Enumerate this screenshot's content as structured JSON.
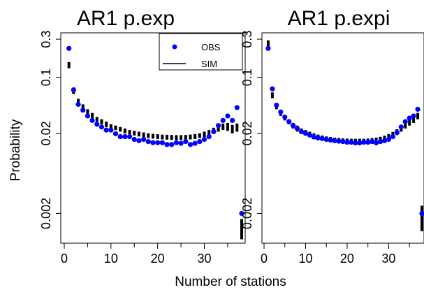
{
  "chart_data": [
    {
      "type": "scatter",
      "title": "AR1 p.exp",
      "xlabel": "Number of stations",
      "ylabel": "Probability",
      "yscale": "log",
      "xlim": [
        0,
        38
      ],
      "ylim": [
        0.00085,
        0.36
      ],
      "x_ticks": [
        0,
        10,
        20,
        30
      ],
      "y_ticks": [
        0.002,
        0.02,
        0.1,
        0.3
      ],
      "y_tick_labels": [
        "0.002",
        "0.02",
        "0.1",
        "0.3"
      ],
      "legend": {
        "position": "top-right",
        "entries": [
          {
            "label": "OBS",
            "symbol": "point",
            "color": "#0000ff"
          },
          {
            "label": "SIM",
            "symbol": "line",
            "color": "#000000"
          }
        ]
      },
      "series": [
        {
          "name": "OBS",
          "color": "#0000ff",
          "x": [
            1,
            2,
            3,
            4,
            5,
            6,
            7,
            8,
            9,
            10,
            11,
            12,
            13,
            14,
            15,
            16,
            17,
            18,
            19,
            20,
            21,
            22,
            23,
            24,
            25,
            26,
            27,
            28,
            29,
            30,
            31,
            32,
            33,
            34,
            35,
            36,
            37,
            38
          ],
          "y": [
            0.23,
            0.07,
            0.046,
            0.039,
            0.033,
            0.029,
            0.026,
            0.024,
            0.022,
            0.022,
            0.0198,
            0.0182,
            0.0182,
            0.0182,
            0.0168,
            0.0162,
            0.0168,
            0.0158,
            0.0153,
            0.0153,
            0.0153,
            0.0145,
            0.0145,
            0.0153,
            0.015,
            0.0158,
            0.0145,
            0.015,
            0.0158,
            0.0168,
            0.0182,
            0.021,
            0.025,
            0.029,
            0.033,
            0.029,
            0.042,
            0.002
          ]
        },
        {
          "name": "SIM",
          "color": "#000000",
          "x": [
            1,
            2,
            3,
            4,
            5,
            6,
            7,
            8,
            9,
            10,
            11,
            12,
            13,
            14,
            15,
            16,
            17,
            18,
            19,
            20,
            21,
            22,
            23,
            24,
            25,
            26,
            27,
            28,
            29,
            30,
            31,
            32,
            33,
            34,
            35,
            36,
            37,
            38
          ],
          "low": [
            0.13,
            0.062,
            0.047,
            0.04,
            0.035,
            0.031,
            0.028,
            0.026,
            0.024,
            0.023,
            0.022,
            0.021,
            0.02,
            0.0195,
            0.0188,
            0.0183,
            0.0178,
            0.0175,
            0.0172,
            0.017,
            0.0168,
            0.0167,
            0.0166,
            0.0165,
            0.0165,
            0.0166,
            0.0168,
            0.017,
            0.0175,
            0.018,
            0.019,
            0.02,
            0.021,
            0.022,
            0.0215,
            0.02,
            0.021,
            0.00095
          ],
          "high": [
            0.155,
            0.072,
            0.054,
            0.046,
            0.04,
            0.036,
            0.032,
            0.03,
            0.028,
            0.026,
            0.025,
            0.024,
            0.023,
            0.022,
            0.0215,
            0.021,
            0.0205,
            0.02,
            0.0197,
            0.0195,
            0.0193,
            0.0192,
            0.0191,
            0.019,
            0.019,
            0.0191,
            0.0193,
            0.0196,
            0.02,
            0.021,
            0.022,
            0.0235,
            0.025,
            0.0265,
            0.027,
            0.0255,
            0.0265,
            0.0017
          ]
        }
      ]
    },
    {
      "type": "scatter",
      "title": "AR1 p.expi",
      "xlabel": "",
      "ylabel": "",
      "yscale": "log",
      "xlim": [
        0,
        38
      ],
      "ylim": [
        0.00085,
        0.36
      ],
      "x_ticks": [
        0,
        10,
        20,
        30
      ],
      "y_ticks": [
        0.002,
        0.02,
        0.1,
        0.3
      ],
      "y_tick_labels": [
        "0.002",
        "0.02",
        "0.1",
        "0.3"
      ],
      "series": [
        {
          "name": "OBS",
          "color": "#0000ff",
          "x": [
            1,
            2,
            3,
            4,
            5,
            6,
            7,
            8,
            9,
            10,
            11,
            12,
            13,
            14,
            15,
            16,
            17,
            18,
            19,
            20,
            21,
            22,
            23,
            24,
            25,
            26,
            27,
            28,
            29,
            30,
            31,
            32,
            33,
            34,
            35,
            36,
            37,
            38
          ],
          "y": [
            0.23,
            0.072,
            0.045,
            0.037,
            0.032,
            0.028,
            0.025,
            0.023,
            0.021,
            0.02,
            0.019,
            0.018,
            0.0175,
            0.0172,
            0.0168,
            0.0165,
            0.0162,
            0.016,
            0.0158,
            0.0155,
            0.0155,
            0.0152,
            0.0152,
            0.0155,
            0.0155,
            0.0158,
            0.0152,
            0.0158,
            0.0162,
            0.0168,
            0.0182,
            0.0205,
            0.024,
            0.028,
            0.031,
            0.033,
            0.04,
            0.002
          ]
        },
        {
          "name": "SIM",
          "color": "#000000",
          "x": [
            1,
            2,
            3,
            4,
            5,
            6,
            7,
            8,
            9,
            10,
            11,
            12,
            13,
            14,
            15,
            16,
            17,
            18,
            19,
            20,
            21,
            22,
            23,
            24,
            25,
            26,
            27,
            28,
            29,
            30,
            31,
            32,
            33,
            34,
            35,
            36,
            37,
            38
          ],
          "low": [
            0.24,
            0.055,
            0.04,
            0.033,
            0.029,
            0.026,
            0.023,
            0.021,
            0.02,
            0.019,
            0.018,
            0.0172,
            0.0166,
            0.0162,
            0.0158,
            0.0155,
            0.0152,
            0.015,
            0.0148,
            0.0147,
            0.0146,
            0.0146,
            0.0146,
            0.0146,
            0.0147,
            0.0148,
            0.015,
            0.0153,
            0.0158,
            0.0165,
            0.0175,
            0.019,
            0.021,
            0.023,
            0.025,
            0.027,
            0.03,
            0.0012
          ],
          "high": [
            0.29,
            0.065,
            0.046,
            0.038,
            0.033,
            0.03,
            0.027,
            0.025,
            0.023,
            0.022,
            0.021,
            0.02,
            0.0193,
            0.0188,
            0.0183,
            0.018,
            0.0177,
            0.0175,
            0.0173,
            0.0172,
            0.0171,
            0.0171,
            0.0171,
            0.0171,
            0.0172,
            0.0174,
            0.0177,
            0.0181,
            0.0187,
            0.0196,
            0.0208,
            0.0225,
            0.025,
            0.028,
            0.03,
            0.032,
            0.036,
            0.0025
          ]
        }
      ]
    }
  ]
}
